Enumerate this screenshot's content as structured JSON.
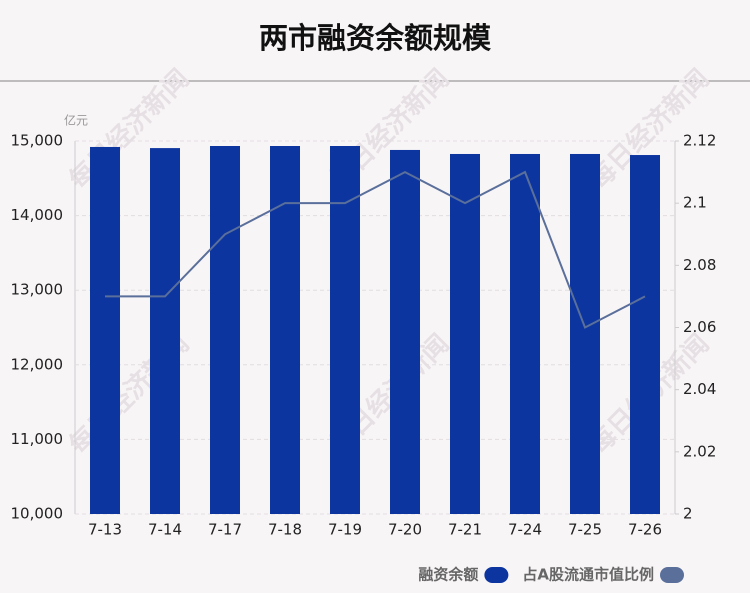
{
  "chart_data": {
    "type": "bar-line",
    "title": "两市融资余额规模",
    "y_unit": "亿元",
    "watermark": "每日经济新闻",
    "categories": [
      "7-13",
      "7-14",
      "7-17",
      "7-18",
      "7-19",
      "7-20",
      "7-21",
      "7-24",
      "7-25",
      "7-26"
    ],
    "series": [
      {
        "name": "融资余额",
        "type": "bar",
        "color": "#0d35a0",
        "values": [
          14920,
          14905,
          14933,
          14933,
          14933,
          14880,
          14826,
          14826,
          14826,
          14812
        ]
      },
      {
        "name": "占A股流通市值比例",
        "type": "line",
        "axis": "y2",
        "color": "#5a6f9a",
        "values": [
          2.07,
          2.07,
          2.09,
          2.1,
          2.1,
          2.11,
          2.1,
          2.11,
          2.06,
          2.07
        ]
      }
    ],
    "ylim": [
      10000,
      15000
    ],
    "yticks": [
      {
        "value": 10000,
        "label": "10,000"
      },
      {
        "value": 11000,
        "label": "11,000"
      },
      {
        "value": 12000,
        "label": "12,000"
      },
      {
        "value": 13000,
        "label": "13,000"
      },
      {
        "value": 14000,
        "label": "14,000"
      },
      {
        "value": 15000,
        "label": "15,000"
      }
    ],
    "y2lim": [
      2,
      2.12
    ],
    "y2ticks": [
      2,
      2.02,
      2.04,
      2.06,
      2.08,
      2.1,
      2.12
    ],
    "grid": true,
    "legend": "bottom-right"
  }
}
